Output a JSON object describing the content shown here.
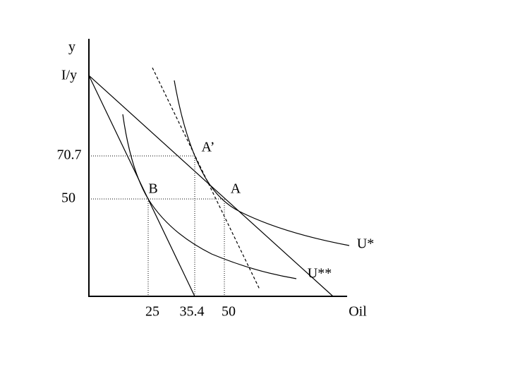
{
  "axis_labels": {
    "y": "y",
    "x": "Oil"
  },
  "y_labels": [
    "I/y",
    "70.7",
    "50"
  ],
  "x_labels": [
    "25",
    "35.4",
    "50"
  ],
  "point_labels": [
    "A’",
    "B",
    "A"
  ],
  "curve_labels": [
    "U*",
    "U**"
  ]
}
